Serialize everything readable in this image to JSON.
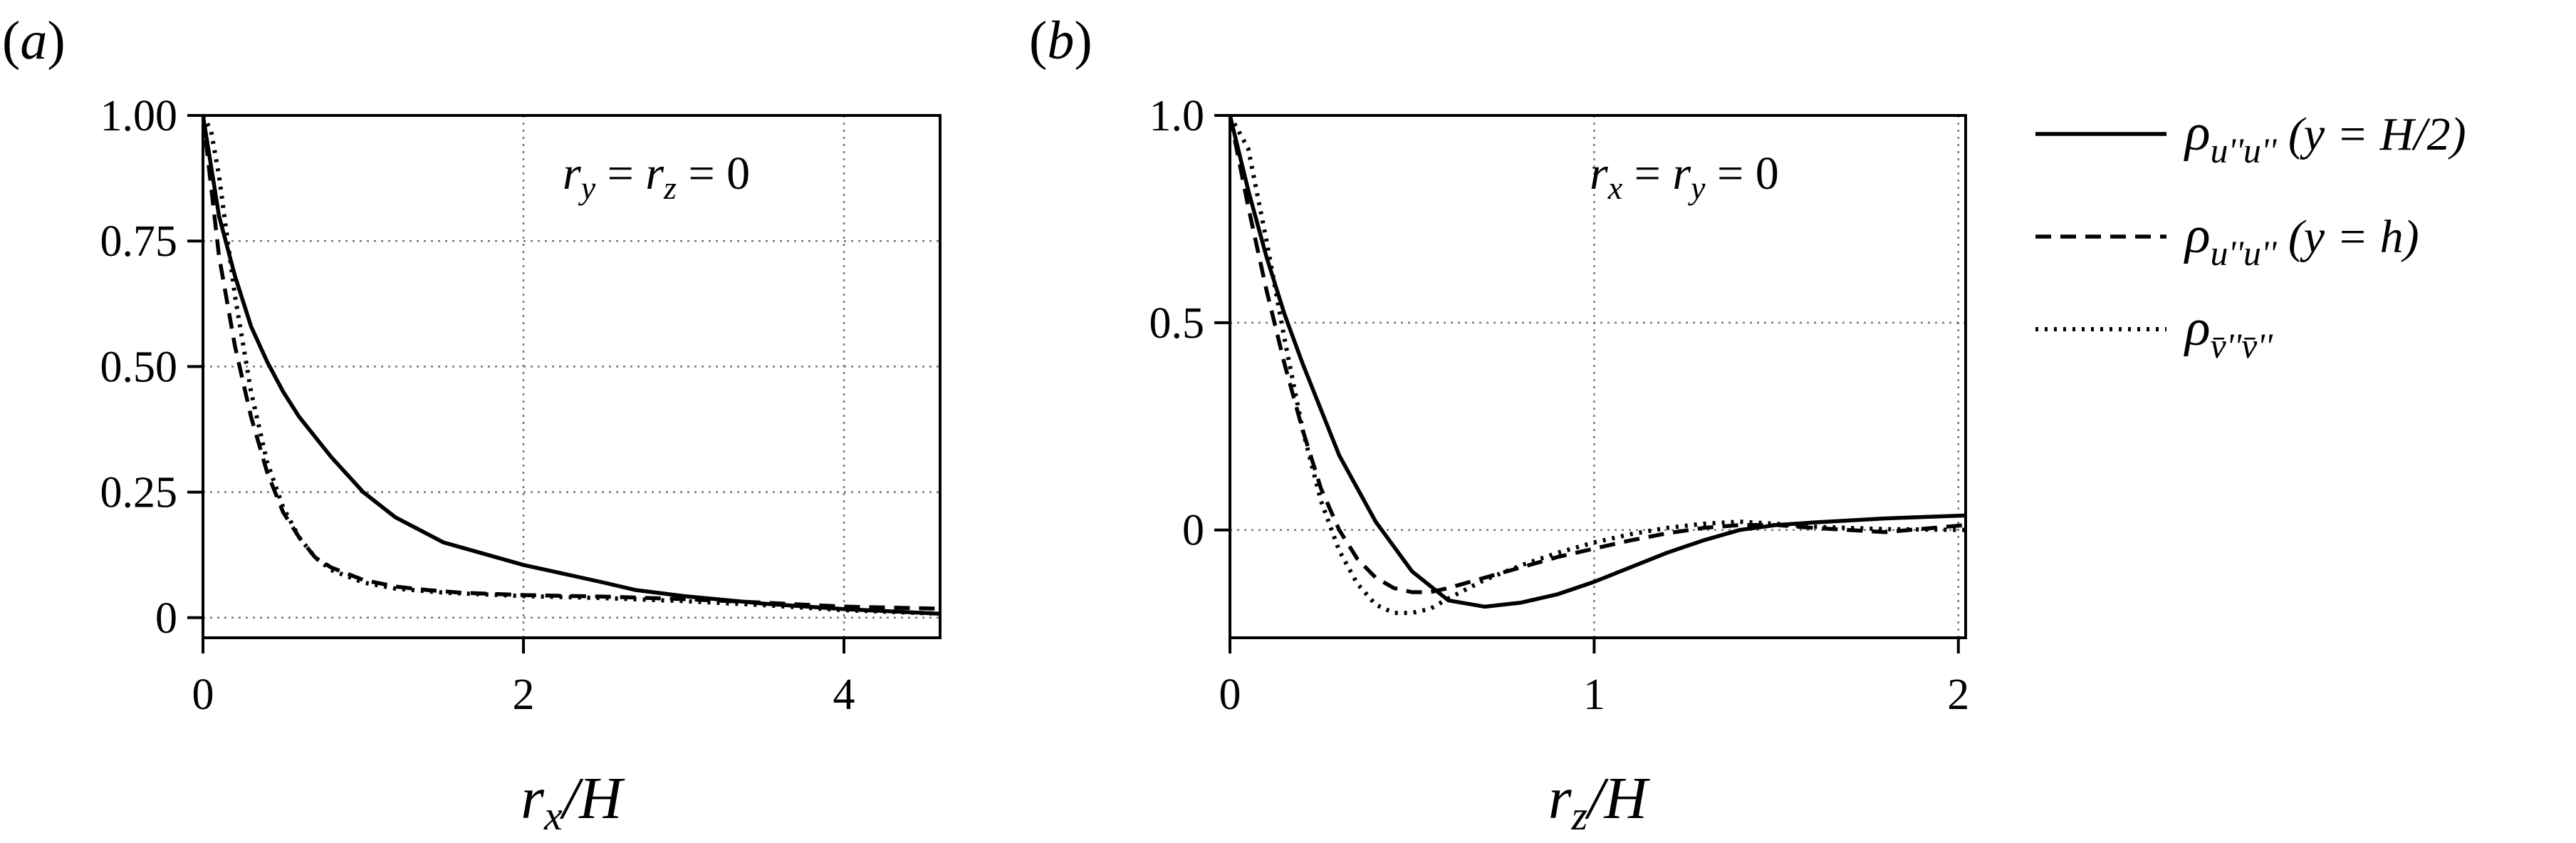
{
  "chart_data": [
    {
      "panel_label": "(a)",
      "type": "line",
      "xlabel": "r_x/H",
      "xlabel_parts": {
        "main": "r",
        "sub": "x",
        "rest": "/H"
      },
      "ylabel": "",
      "xlim": [
        0,
        4.6
      ],
      "ylim": [
        -0.04,
        1.0
      ],
      "x_ticks": [
        0,
        2,
        4
      ],
      "x_tick_labels": [
        "0",
        "2",
        "4"
      ],
      "y_ticks": [
        0,
        0.25,
        0.5,
        0.75,
        1.0
      ],
      "y_tick_labels": [
        "0",
        "0.25",
        "0.50",
        "0.75",
        "1.00"
      ],
      "grid": "dotted",
      "annotation": "r_y = r_z = 0",
      "annotation_parts": {
        "a": "r",
        "a_sub": "y",
        "b": "r",
        "b_sub": "z",
        "eq": " = ",
        "zero": "0"
      },
      "series": [
        {
          "name": "ρ_{u''u''}(y = H/2)",
          "style": "solid",
          "x": [
            0,
            0.1,
            0.2,
            0.3,
            0.4,
            0.5,
            0.6,
            0.8,
            1.0,
            1.2,
            1.5,
            2.0,
            2.5,
            2.7,
            3.0,
            3.5,
            4.0,
            4.6
          ],
          "y": [
            1.0,
            0.8,
            0.68,
            0.58,
            0.51,
            0.45,
            0.4,
            0.32,
            0.25,
            0.2,
            0.15,
            0.105,
            0.07,
            0.055,
            0.043,
            0.028,
            0.017,
            0.008
          ]
        },
        {
          "name": "ρ_{u''u''}(y = h)",
          "style": "dashed",
          "x": [
            0,
            0.1,
            0.2,
            0.3,
            0.4,
            0.5,
            0.6,
            0.7,
            0.8,
            1.0,
            1.2,
            1.4,
            1.6,
            2.0,
            2.5,
            3.0,
            3.5,
            4.0,
            4.6
          ],
          "y": [
            1.0,
            0.72,
            0.54,
            0.4,
            0.29,
            0.21,
            0.16,
            0.12,
            0.1,
            0.075,
            0.062,
            0.055,
            0.05,
            0.045,
            0.042,
            0.037,
            0.03,
            0.022,
            0.018
          ]
        },
        {
          "name": "ρ_{v̄''v̄''}",
          "style": "dotted",
          "x": [
            0,
            0.05,
            0.1,
            0.2,
            0.3,
            0.4,
            0.5,
            0.6,
            0.7,
            0.8,
            1.0,
            1.2,
            1.5,
            2.0,
            2.5,
            3.0,
            3.5,
            4.0,
            4.6
          ],
          "y": [
            1.0,
            0.97,
            0.88,
            0.64,
            0.45,
            0.31,
            0.22,
            0.16,
            0.12,
            0.095,
            0.07,
            0.058,
            0.05,
            0.043,
            0.039,
            0.033,
            0.025,
            0.015,
            0.008
          ]
        }
      ]
    },
    {
      "panel_label": "(b)",
      "type": "line",
      "xlabel": "r_z/H",
      "xlabel_parts": {
        "main": "r",
        "sub": "z",
        "rest": "/H"
      },
      "ylabel": "",
      "xlim": [
        0,
        2.02
      ],
      "ylim": [
        -0.26,
        1.0
      ],
      "x_ticks": [
        0,
        1,
        2
      ],
      "x_tick_labels": [
        "0",
        "1",
        "2"
      ],
      "y_ticks": [
        0,
        0.5,
        1.0
      ],
      "y_tick_labels": [
        "0",
        "0.5",
        "1.0"
      ],
      "grid": "dotted",
      "annotation": "r_x = r_y = 0",
      "annotation_parts": {
        "a": "r",
        "a_sub": "x",
        "b": "r",
        "b_sub": "y",
        "eq": " = ",
        "zero": "0"
      },
      "series": [
        {
          "name": "ρ_{u''u''}(y = H/2)",
          "style": "solid",
          "x": [
            0,
            0.05,
            0.1,
            0.15,
            0.2,
            0.3,
            0.4,
            0.5,
            0.6,
            0.7,
            0.8,
            0.9,
            1.0,
            1.1,
            1.2,
            1.3,
            1.4,
            1.5,
            1.6,
            1.8,
            2.02
          ],
          "y": [
            1.0,
            0.82,
            0.66,
            0.52,
            0.4,
            0.18,
            0.02,
            -0.1,
            -0.17,
            -0.185,
            -0.175,
            -0.155,
            -0.125,
            -0.09,
            -0.055,
            -0.025,
            0.0,
            0.012,
            0.018,
            0.028,
            0.035
          ]
        },
        {
          "name": "ρ_{u''u''}(y = h)",
          "style": "dashed",
          "x": [
            0,
            0.05,
            0.1,
            0.15,
            0.2,
            0.25,
            0.3,
            0.35,
            0.4,
            0.45,
            0.5,
            0.55,
            0.6,
            0.7,
            0.8,
            0.9,
            1.0,
            1.1,
            1.2,
            1.3,
            1.4,
            1.5,
            1.6,
            1.8,
            2.02
          ],
          "y": [
            1.0,
            0.78,
            0.58,
            0.4,
            0.24,
            0.1,
            0.0,
            -0.07,
            -0.115,
            -0.14,
            -0.15,
            -0.15,
            -0.14,
            -0.115,
            -0.09,
            -0.065,
            -0.045,
            -0.025,
            -0.008,
            0.005,
            0.012,
            0.012,
            0.005,
            -0.005,
            0.012
          ]
        },
        {
          "name": "ρ_{v̄''v̄''}",
          "style": "dotted",
          "x": [
            0,
            0.05,
            0.1,
            0.15,
            0.2,
            0.25,
            0.3,
            0.35,
            0.4,
            0.45,
            0.5,
            0.55,
            0.6,
            0.7,
            0.8,
            0.9,
            1.0,
            1.1,
            1.2,
            1.3,
            1.4,
            1.5,
            1.6,
            1.8,
            2.02
          ],
          "y": [
            1.0,
            0.92,
            0.7,
            0.46,
            0.24,
            0.07,
            -0.05,
            -0.13,
            -0.18,
            -0.2,
            -0.2,
            -0.19,
            -0.165,
            -0.12,
            -0.085,
            -0.055,
            -0.03,
            -0.01,
            0.005,
            0.015,
            0.02,
            0.015,
            0.008,
            0.002,
            0.0
          ]
        }
      ]
    }
  ],
  "legend": {
    "placement": "right",
    "entries": [
      {
        "style": "solid",
        "symbol": "ρ",
        "sub": "u''u''",
        "arg": "(y = H/2)"
      },
      {
        "style": "dashed",
        "symbol": "ρ",
        "sub": "u''u''",
        "arg": "(y = h)"
      },
      {
        "style": "dotted",
        "symbol": "ρ",
        "sub": "v̄''v̄''",
        "arg": ""
      }
    ]
  }
}
